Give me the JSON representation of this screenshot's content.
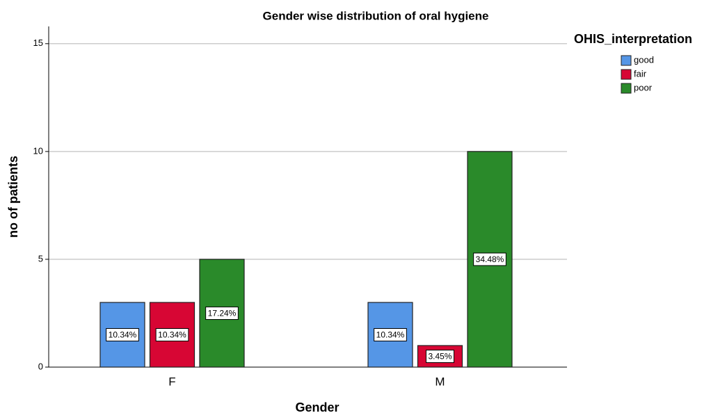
{
  "chart_data": {
    "type": "bar",
    "title": "Gender wise distribution of oral hygiene",
    "x_label": "Gender",
    "y_label": "no of patients",
    "legend_title": "OHIS_interpretation",
    "categories": [
      "F",
      "M"
    ],
    "series": [
      {
        "name": "good",
        "color": "#5596e6",
        "values": [
          3,
          3
        ],
        "percent_labels": [
          "10.34%",
          "10.34%"
        ]
      },
      {
        "name": "fair",
        "color": "#d70634",
        "values": [
          3,
          1
        ],
        "percent_labels": [
          "10.34%",
          "3.45%"
        ]
      },
      {
        "name": "poor",
        "color": "#2a8a2a",
        "values": [
          5,
          10
        ],
        "percent_labels": [
          "17.24%",
          "34.48%"
        ]
      }
    ],
    "ylim": [
      0,
      15.8
    ],
    "yticks": [
      0,
      5,
      10,
      15
    ],
    "grid": true
  }
}
